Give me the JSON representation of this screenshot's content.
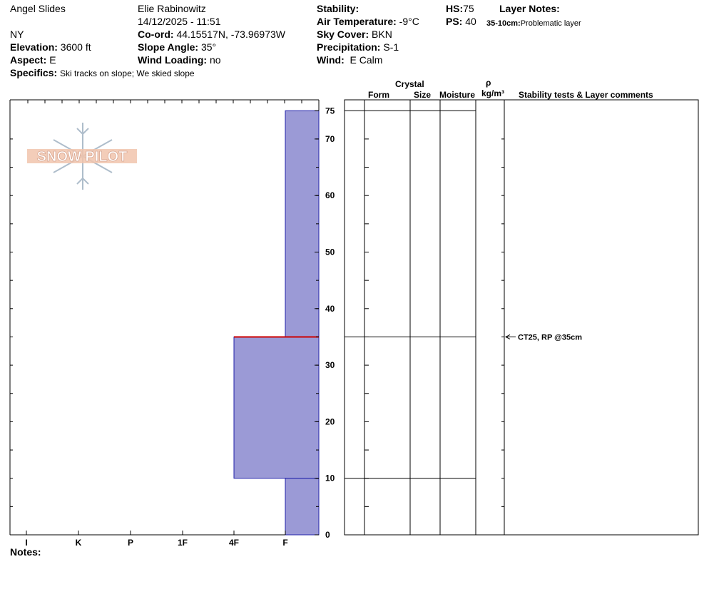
{
  "header": {
    "location": "Angel Slides",
    "state": "NY",
    "observer": "Elie Rabinowitz",
    "datetime": "14/12/2025 - 11:51",
    "elevation_label": "Elevation:",
    "elevation": "3600 ft",
    "aspect_label": "Aspect:",
    "aspect": "E",
    "specifics_label": "Specifics:",
    "specifics": "Ski tracks on slope; We skied slope",
    "coord_label": "Co-ord:",
    "coord": "44.15517N, -73.96973W",
    "slope_label": "Slope Angle:",
    "slope": "35°",
    "wind_loading_label": "Wind Loading:",
    "wind_loading": "no",
    "stability_label": "Stability:",
    "stability": "",
    "air_temp_label": "Air Temperature:",
    "air_temp": "-9°C",
    "sky_label": "Sky Cover:",
    "sky": "BKN",
    "precip_label": "Precipitation:",
    "precip": "S-1",
    "wind_label": "Wind:",
    "wind": "E Calm",
    "hs_label": "HS:",
    "hs": "75",
    "ps_label": "PS:",
    "ps": "40",
    "layer_notes_label": "Layer Notes:",
    "layer_note_depth": "35-10cm:",
    "layer_note_text": "Problematic layer"
  },
  "logo": {
    "text": "SNOW PILOT"
  },
  "columns": {
    "crystal": "Crystal",
    "form": "Form",
    "size": "Size",
    "moisture": "Moisture",
    "rho": "ρ",
    "density_unit": "kg/m³",
    "stability_comments": "Stability tests & Layer comments"
  },
  "notes_label": "Notes:",
  "colors": {
    "layer_fill": "#9b9ad6",
    "layer_border": "#2222aa",
    "weak_layer": "#cc0000"
  },
  "chart_data": {
    "type": "bar",
    "orientation": "horizontal",
    "description_axis": "hand hardness profile",
    "y_range": [
      0,
      75
    ],
    "y_ticks": [
      0,
      10,
      20,
      30,
      40,
      50,
      60,
      70,
      75
    ],
    "hardness_scale": [
      "I",
      "K",
      "P",
      "1F",
      "4F",
      "F"
    ],
    "layers": [
      {
        "top": 75,
        "bottom": 35,
        "hardness": "F"
      },
      {
        "top": 35,
        "bottom": 10,
        "hardness": "4F"
      },
      {
        "top": 10,
        "bottom": 0,
        "hardness": "F"
      }
    ],
    "weak_layer_depth": 35,
    "layer_boundaries": [
      75,
      35,
      10
    ],
    "stability_tests": [
      {
        "depth": 35,
        "text": "CT25, RP @35cm"
      }
    ]
  }
}
